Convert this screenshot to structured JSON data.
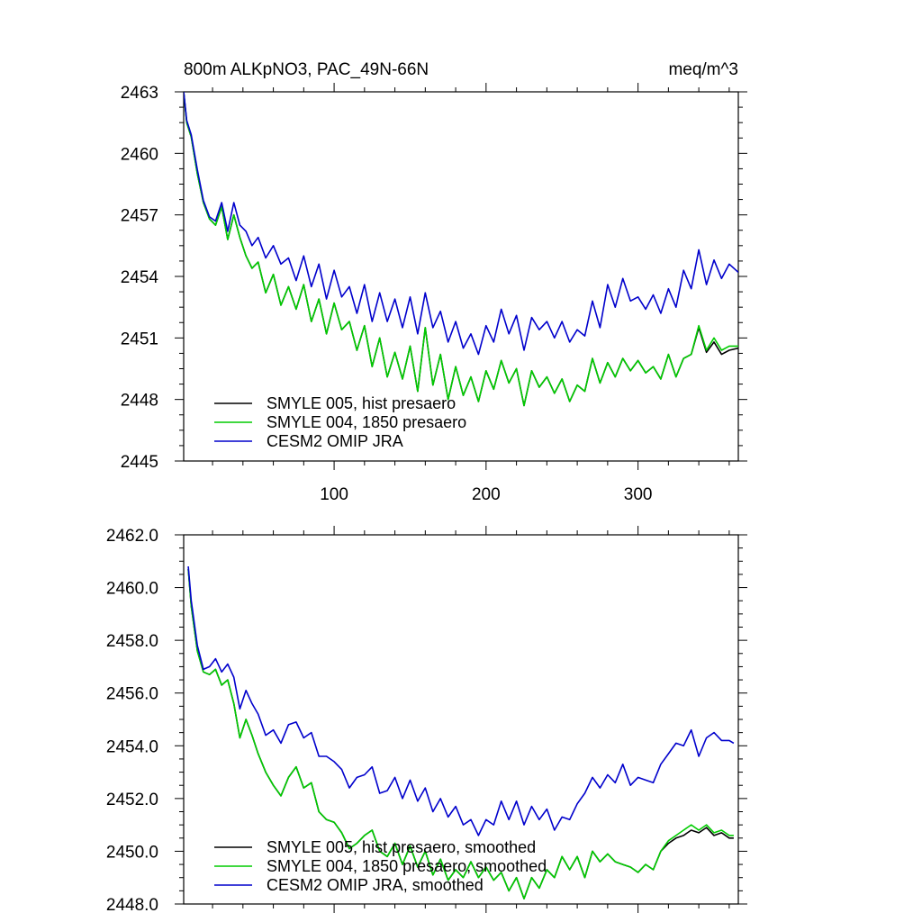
{
  "chart_data": [
    {
      "type": "line",
      "title": "800m ALKpNO3, PAC_49N-66N",
      "units": "meq/m^3",
      "xlim": [
        1,
        366
      ],
      "ylim": [
        2445,
        2463
      ],
      "xticks": [
        100,
        200,
        300
      ],
      "xtick_labels": [
        "100",
        "200",
        "300"
      ],
      "yticks": [
        2463,
        2460,
        2457,
        2454,
        2451,
        2448,
        2445
      ],
      "ytick_labels": [
        "2463",
        "2460",
        "2457",
        "2454",
        "2451",
        "2448",
        "2445"
      ],
      "legend_placement": "bottom-left",
      "series": [
        {
          "name": "SMYLE 005, hist presaero",
          "color": "#000000",
          "x": [
            1,
            3,
            6,
            10,
            14,
            18,
            22,
            26,
            30,
            34,
            38,
            42,
            46,
            50,
            55,
            60,
            65,
            70,
            75,
            80,
            85,
            90,
            95,
            100,
            105,
            110,
            115,
            120,
            125,
            130,
            135,
            140,
            145,
            150,
            155,
            160,
            165,
            170,
            175,
            180,
            185,
            190,
            195,
            200,
            205,
            210,
            215,
            220,
            225,
            230,
            235,
            240,
            245,
            250,
            255,
            260,
            265,
            270,
            275,
            280,
            285,
            290,
            295,
            300,
            305,
            310,
            315,
            320,
            325,
            330,
            335,
            340,
            345,
            350,
            355,
            360,
            366
          ],
          "values": [
            2463.0,
            2461.5,
            2460.8,
            2459.0,
            2457.6,
            2456.8,
            2456.5,
            2457.4,
            2455.8,
            2457.0,
            2455.9,
            2455.0,
            2454.4,
            2454.7,
            2453.2,
            2454.1,
            2452.6,
            2453.5,
            2452.4,
            2453.6,
            2451.8,
            2452.9,
            2451.2,
            2452.7,
            2451.4,
            2451.8,
            2450.4,
            2451.6,
            2449.6,
            2451.0,
            2449.1,
            2450.3,
            2449.0,
            2450.6,
            2448.4,
            2451.5,
            2448.7,
            2450.2,
            2448.0,
            2449.6,
            2448.2,
            2449.1,
            2447.9,
            2449.4,
            2448.5,
            2449.9,
            2448.8,
            2449.5,
            2447.7,
            2449.4,
            2448.6,
            2449.1,
            2448.3,
            2449.0,
            2447.9,
            2448.7,
            2448.4,
            2450.0,
            2448.8,
            2449.8,
            2449.1,
            2450.0,
            2449.4,
            2449.9,
            2449.3,
            2449.6,
            2449.0,
            2450.2,
            2449.1,
            2450.0,
            2450.2,
            2451.5,
            2450.3,
            2450.8,
            2450.2,
            2450.4,
            2450.5
          ]
        },
        {
          "name": "SMYLE 004, 1850 presaero",
          "color": "#00cc00",
          "x": [
            1,
            3,
            6,
            10,
            14,
            18,
            22,
            26,
            30,
            34,
            38,
            42,
            46,
            50,
            55,
            60,
            65,
            70,
            75,
            80,
            85,
            90,
            95,
            100,
            105,
            110,
            115,
            120,
            125,
            130,
            135,
            140,
            145,
            150,
            155,
            160,
            165,
            170,
            175,
            180,
            185,
            190,
            195,
            200,
            205,
            210,
            215,
            220,
            225,
            230,
            235,
            240,
            245,
            250,
            255,
            260,
            265,
            270,
            275,
            280,
            285,
            290,
            295,
            300,
            305,
            310,
            315,
            320,
            325,
            330,
            335,
            340,
            345,
            350,
            355,
            360,
            366
          ],
          "values": [
            2463.0,
            2461.5,
            2460.8,
            2459.0,
            2457.6,
            2456.8,
            2456.5,
            2457.4,
            2455.8,
            2457.0,
            2455.9,
            2455.0,
            2454.4,
            2454.7,
            2453.2,
            2454.1,
            2452.6,
            2453.5,
            2452.4,
            2453.6,
            2451.8,
            2452.9,
            2451.2,
            2452.7,
            2451.4,
            2451.8,
            2450.4,
            2451.6,
            2449.6,
            2451.0,
            2449.1,
            2450.3,
            2449.0,
            2450.6,
            2448.4,
            2451.5,
            2448.7,
            2450.2,
            2448.0,
            2449.6,
            2448.2,
            2449.1,
            2447.9,
            2449.4,
            2448.5,
            2449.9,
            2448.8,
            2449.5,
            2447.7,
            2449.4,
            2448.6,
            2449.1,
            2448.3,
            2449.0,
            2447.9,
            2448.7,
            2448.4,
            2450.0,
            2448.8,
            2449.8,
            2449.1,
            2450.0,
            2449.4,
            2449.9,
            2449.3,
            2449.6,
            2449.0,
            2450.2,
            2449.1,
            2450.0,
            2450.2,
            2451.6,
            2450.4,
            2451.0,
            2450.4,
            2450.6,
            2450.6
          ]
        },
        {
          "name": "CESM2 OMIP JRA",
          "color": "#0000cc",
          "x": [
            1,
            3,
            6,
            10,
            14,
            18,
            22,
            26,
            30,
            34,
            38,
            42,
            46,
            50,
            55,
            60,
            65,
            70,
            75,
            80,
            85,
            90,
            95,
            100,
            105,
            110,
            115,
            120,
            125,
            130,
            135,
            140,
            145,
            150,
            155,
            160,
            165,
            170,
            175,
            180,
            185,
            190,
            195,
            200,
            205,
            210,
            215,
            220,
            225,
            230,
            235,
            240,
            245,
            250,
            255,
            260,
            265,
            270,
            275,
            280,
            285,
            290,
            295,
            300,
            305,
            310,
            315,
            320,
            325,
            330,
            335,
            340,
            345,
            350,
            355,
            360,
            366
          ],
          "values": [
            2463.0,
            2461.6,
            2460.9,
            2459.2,
            2457.7,
            2456.9,
            2456.7,
            2457.6,
            2456.2,
            2457.6,
            2456.5,
            2456.2,
            2455.5,
            2455.9,
            2454.9,
            2455.5,
            2454.6,
            2454.9,
            2453.8,
            2455.0,
            2453.5,
            2454.6,
            2452.9,
            2454.3,
            2453.0,
            2453.5,
            2452.2,
            2453.6,
            2451.8,
            2453.2,
            2451.8,
            2452.9,
            2451.5,
            2453.0,
            2451.2,
            2453.2,
            2451.5,
            2452.3,
            2450.8,
            2451.8,
            2450.5,
            2451.2,
            2450.2,
            2451.6,
            2450.8,
            2452.4,
            2451.2,
            2452.1,
            2450.4,
            2452.0,
            2451.4,
            2451.8,
            2451.0,
            2451.8,
            2450.8,
            2451.4,
            2451.1,
            2452.8,
            2451.5,
            2453.6,
            2452.5,
            2453.9,
            2452.8,
            2453.0,
            2452.4,
            2453.1,
            2452.2,
            2453.4,
            2452.5,
            2454.3,
            2453.4,
            2455.3,
            2453.6,
            2454.8,
            2453.9,
            2454.6,
            2454.2
          ]
        }
      ]
    },
    {
      "type": "line",
      "xlim": [
        1,
        366
      ],
      "ylim": [
        2448.0,
        2462.0
      ],
      "xticks": [
        100,
        200,
        300
      ],
      "yticks": [
        2462.0,
        2460.0,
        2458.0,
        2456.0,
        2454.0,
        2452.0,
        2450.0,
        2448.0
      ],
      "ytick_labels": [
        "2462.0",
        "2460.0",
        "2458.0",
        "2456.0",
        "2454.0",
        "2452.0",
        "2450.0",
        "2448.0"
      ],
      "legend_placement": "bottom-left",
      "series": [
        {
          "name": "SMYLE 005, hist presaero, smoothed",
          "color": "#000000",
          "x": [
            4,
            6,
            10,
            14,
            18,
            22,
            26,
            30,
            34,
            38,
            42,
            46,
            50,
            55,
            60,
            65,
            70,
            75,
            80,
            85,
            90,
            95,
            100,
            105,
            110,
            115,
            120,
            125,
            130,
            135,
            140,
            145,
            150,
            155,
            160,
            165,
            170,
            175,
            180,
            185,
            190,
            195,
            200,
            205,
            210,
            215,
            220,
            225,
            230,
            235,
            240,
            245,
            250,
            255,
            260,
            265,
            270,
            275,
            280,
            285,
            290,
            295,
            300,
            305,
            310,
            315,
            320,
            325,
            330,
            335,
            340,
            345,
            350,
            355,
            360,
            363
          ],
          "values": [
            2460.7,
            2459.3,
            2457.6,
            2456.8,
            2456.7,
            2456.9,
            2456.3,
            2456.5,
            2455.6,
            2454.3,
            2455.0,
            2454.4,
            2453.7,
            2453.0,
            2452.5,
            2452.1,
            2452.8,
            2453.2,
            2452.4,
            2452.6,
            2451.5,
            2451.2,
            2451.1,
            2450.7,
            2450.1,
            2450.3,
            2450.6,
            2450.8,
            2450.0,
            2449.8,
            2450.3,
            2449.5,
            2450.2,
            2449.4,
            2450.0,
            2449.1,
            2449.7,
            2448.9,
            2449.3,
            2449.0,
            2449.6,
            2449.0,
            2449.4,
            2448.9,
            2449.2,
            2448.5,
            2449.0,
            2448.2,
            2449.0,
            2448.6,
            2449.3,
            2449.0,
            2449.8,
            2449.3,
            2449.8,
            2449.0,
            2450.0,
            2449.6,
            2449.9,
            2449.6,
            2449.5,
            2449.4,
            2449.2,
            2449.5,
            2449.3,
            2450.0,
            2450.3,
            2450.5,
            2450.6,
            2450.8,
            2450.7,
            2450.9,
            2450.6,
            2450.7,
            2450.5,
            2450.5
          ]
        },
        {
          "name": "SMYLE 004, 1850 presaero, smoothed",
          "color": "#00cc00",
          "x": [
            4,
            6,
            10,
            14,
            18,
            22,
            26,
            30,
            34,
            38,
            42,
            46,
            50,
            55,
            60,
            65,
            70,
            75,
            80,
            85,
            90,
            95,
            100,
            105,
            110,
            115,
            120,
            125,
            130,
            135,
            140,
            145,
            150,
            155,
            160,
            165,
            170,
            175,
            180,
            185,
            190,
            195,
            200,
            205,
            210,
            215,
            220,
            225,
            230,
            235,
            240,
            245,
            250,
            255,
            260,
            265,
            270,
            275,
            280,
            285,
            290,
            295,
            300,
            305,
            310,
            315,
            320,
            325,
            330,
            335,
            340,
            345,
            350,
            355,
            360,
            363
          ],
          "values": [
            2460.7,
            2459.3,
            2457.6,
            2456.8,
            2456.7,
            2456.9,
            2456.3,
            2456.5,
            2455.6,
            2454.3,
            2455.0,
            2454.4,
            2453.7,
            2453.0,
            2452.5,
            2452.1,
            2452.8,
            2453.2,
            2452.4,
            2452.6,
            2451.5,
            2451.2,
            2451.1,
            2450.7,
            2450.1,
            2450.3,
            2450.6,
            2450.8,
            2450.0,
            2449.8,
            2450.3,
            2449.5,
            2450.2,
            2449.4,
            2450.0,
            2449.1,
            2449.7,
            2448.9,
            2449.3,
            2449.0,
            2449.6,
            2449.0,
            2449.4,
            2448.9,
            2449.2,
            2448.5,
            2449.0,
            2448.2,
            2449.0,
            2448.6,
            2449.3,
            2449.0,
            2449.8,
            2449.3,
            2449.8,
            2449.0,
            2450.0,
            2449.6,
            2449.9,
            2449.6,
            2449.5,
            2449.4,
            2449.2,
            2449.5,
            2449.3,
            2450.0,
            2450.4,
            2450.6,
            2450.8,
            2451.0,
            2450.8,
            2451.0,
            2450.7,
            2450.8,
            2450.6,
            2450.6
          ]
        },
        {
          "name": "CESM2 OMIP JRA, smoothed",
          "color": "#0000cc",
          "x": [
            4,
            6,
            10,
            14,
            18,
            22,
            26,
            30,
            34,
            38,
            42,
            46,
            50,
            55,
            60,
            65,
            70,
            75,
            80,
            85,
            90,
            95,
            100,
            105,
            110,
            115,
            120,
            125,
            130,
            135,
            140,
            145,
            150,
            155,
            160,
            165,
            170,
            175,
            180,
            185,
            190,
            195,
            200,
            205,
            210,
            215,
            220,
            225,
            230,
            235,
            240,
            245,
            250,
            255,
            260,
            265,
            270,
            275,
            280,
            285,
            290,
            295,
            300,
            305,
            310,
            315,
            320,
            325,
            330,
            335,
            340,
            345,
            350,
            355,
            360,
            363
          ],
          "values": [
            2460.8,
            2459.5,
            2457.8,
            2456.9,
            2457.0,
            2457.3,
            2456.8,
            2457.1,
            2456.6,
            2455.4,
            2456.1,
            2455.6,
            2455.2,
            2454.4,
            2454.6,
            2454.1,
            2454.8,
            2454.9,
            2454.3,
            2454.5,
            2453.6,
            2453.6,
            2453.4,
            2453.1,
            2452.4,
            2452.8,
            2452.9,
            2453.2,
            2452.2,
            2452.3,
            2452.8,
            2452.0,
            2452.7,
            2451.9,
            2452.4,
            2451.5,
            2452.0,
            2451.3,
            2451.7,
            2451.0,
            2451.2,
            2450.6,
            2451.2,
            2451.0,
            2451.9,
            2451.2,
            2451.9,
            2451.0,
            2451.7,
            2451.2,
            2451.6,
            2450.8,
            2451.3,
            2451.2,
            2451.8,
            2452.2,
            2452.8,
            2452.4,
            2452.9,
            2452.6,
            2453.3,
            2452.5,
            2452.8,
            2452.7,
            2452.6,
            2453.3,
            2453.7,
            2454.1,
            2454.0,
            2454.6,
            2453.6,
            2454.3,
            2454.5,
            2454.2,
            2454.2,
            2454.1
          ]
        }
      ]
    }
  ]
}
